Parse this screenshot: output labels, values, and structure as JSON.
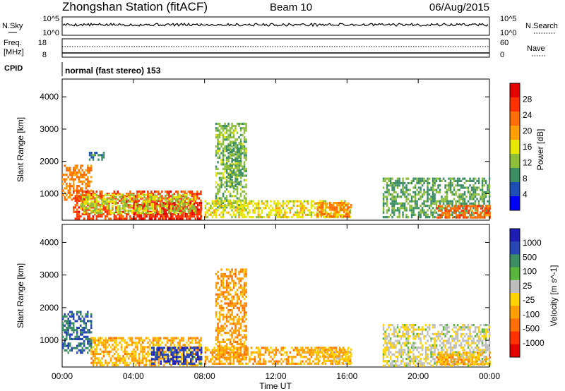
{
  "header": {
    "station": "Zhongshan Station (fitACF)",
    "beam": "Beam 10",
    "date": "06/Aug/2015"
  },
  "nsky_panel": {
    "left_label": "N.Sky",
    "left_ticks": [
      "10^5",
      "10^0"
    ],
    "right_label": "N.Search",
    "right_ticks": [
      "10^5",
      "10^0"
    ]
  },
  "freq_panel": {
    "left_label_1": "Freq.",
    "left_label_2": "[MHz]",
    "left_ticks": [
      "18",
      "8"
    ],
    "right_label": "Nave",
    "right_ticks": [
      "60",
      "0"
    ]
  },
  "cpid": {
    "label": "CPID",
    "text": "normal (fast stereo) 153"
  },
  "x_axis": {
    "label": "Time UT",
    "ticks": [
      "00:00",
      "04:00",
      "08:00",
      "12:00",
      "16:00",
      "20:00",
      "00:00"
    ]
  },
  "colors": {
    "power_scale": [
      "#0000ff",
      "#1e4fb4",
      "#3c8c64",
      "#8cbe3c",
      "#e6e600",
      "#ffa000",
      "#ff6e00",
      "#ff3200",
      "#e60000"
    ],
    "velocity_scale": [
      "#1e1eb4",
      "#2846b4",
      "#3c8c64",
      "#5ab43c",
      "#bebebe",
      "#ffd200",
      "#ffa000",
      "#ff6e00",
      "#ff3200",
      "#e60000"
    ]
  },
  "chart_data": [
    {
      "type": "heatmap",
      "title": "",
      "xlabel": "",
      "ylabel": "Slant Range [km]",
      "x_ticks": [
        "00:00",
        "04:00",
        "08:00",
        "12:00",
        "16:00",
        "20:00",
        "00:00"
      ],
      "y_ticks": [
        "1000",
        "2000",
        "3000",
        "4000"
      ],
      "xlim": [
        0,
        24
      ],
      "ylim": [
        180,
        4550
      ],
      "colorbar": {
        "label": "Power [dB]",
        "ticks": [
          "4",
          "8",
          "12",
          "16",
          "20",
          "24",
          "28"
        ],
        "range": [
          0,
          32
        ]
      },
      "regions": [
        {
          "t": [
            0.0,
            1.6
          ],
          "r": [
            800,
            1900
          ],
          "value": 22
        },
        {
          "t": [
            0.6,
            7.8
          ],
          "r": [
            250,
            1100
          ],
          "value": 26
        },
        {
          "t": [
            4.0,
            7.8
          ],
          "r": [
            250,
            750
          ],
          "value": 28
        },
        {
          "t": [
            1.0,
            7.5
          ],
          "r": [
            400,
            1000
          ],
          "value": 14
        },
        {
          "t": [
            8.6,
            10.3
          ],
          "r": [
            500,
            3200
          ],
          "value": 12
        },
        {
          "t": [
            9.2,
            10.0
          ],
          "r": [
            1200,
            2600
          ],
          "value": 10
        },
        {
          "t": [
            8.0,
            16.2
          ],
          "r": [
            250,
            800
          ],
          "value": 16
        },
        {
          "t": [
            14.3,
            16.2
          ],
          "r": [
            300,
            750
          ],
          "value": 22
        },
        {
          "t": [
            18.0,
            24.0
          ],
          "r": [
            250,
            1500
          ],
          "value": 10
        },
        {
          "t": [
            21.0,
            24.0
          ],
          "r": [
            250,
            650
          ],
          "value": 24
        },
        {
          "t": [
            1.5,
            2.3
          ],
          "r": [
            2050,
            2300
          ],
          "value": 8
        }
      ]
    },
    {
      "type": "heatmap",
      "title": "",
      "xlabel": "Time UT",
      "ylabel": "Slant Range [km]",
      "x_ticks": [
        "00:00",
        "04:00",
        "08:00",
        "12:00",
        "16:00",
        "20:00",
        "00:00"
      ],
      "y_ticks": [
        "1000",
        "2000",
        "3000",
        "4000"
      ],
      "xlim": [
        0,
        24
      ],
      "ylim": [
        180,
        4550
      ],
      "colorbar": {
        "label": "Velocity [m s^-1]",
        "ticks": [
          "1000",
          "500",
          "100",
          "25",
          "-25",
          "-100",
          "-500",
          "-1000"
        ],
        "range": [
          -1200,
          1200
        ]
      },
      "regions": [
        {
          "t": [
            0.0,
            1.6
          ],
          "r": [
            600,
            1900
          ],
          "value": 700
        },
        {
          "t": [
            1.6,
            7.8
          ],
          "r": [
            250,
            1100
          ],
          "value": -300
        },
        {
          "t": [
            5.0,
            7.8
          ],
          "r": [
            300,
            800
          ],
          "value": 900
        },
        {
          "t": [
            8.6,
            10.3
          ],
          "r": [
            500,
            3200
          ],
          "value": -400
        },
        {
          "t": [
            8.0,
            16.2
          ],
          "r": [
            250,
            800
          ],
          "value": -350
        },
        {
          "t": [
            14.3,
            16.2
          ],
          "r": [
            300,
            750
          ],
          "value": -150
        },
        {
          "t": [
            18.0,
            24.0
          ],
          "r": [
            250,
            1500
          ],
          "value": 80
        },
        {
          "t": [
            21.0,
            24.0
          ],
          "r": [
            250,
            650
          ],
          "value": -300
        }
      ]
    }
  ]
}
